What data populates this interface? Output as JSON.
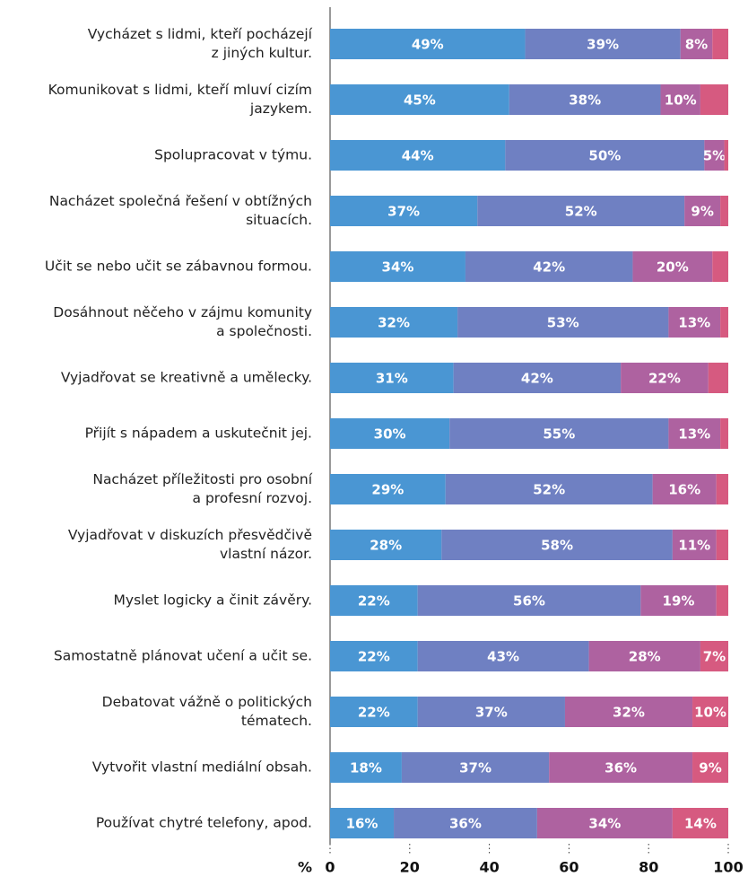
{
  "chart_data": {
    "type": "stacked-barh",
    "categories": [
      "Vycházet s lidmi, kteří pocházejí\nz jiných kultur.",
      "Komunikovat s lidmi, kteří mluví cizím\njazykem.",
      "Spolupracovat v týmu.",
      "Nacházet společná řešení v obtížných\nsituacích.",
      "Učit se nebo učit se zábavnou formou.",
      "Dosáhnout něčeho v zájmu komunity\na společnosti.",
      "Vyjadřovat se kreativně a umělecky.",
      "Přijít s nápadem a uskutečnit jej.",
      "Nacházet příležitosti pro osobní\na profesní rozvoj.",
      "Vyjadřovat v diskuzích přesvědčivě\nvlastní názor.",
      "Myslet logicky a činit závěry.",
      "Samostatně plánovat učení a učit se.",
      "Debatovat vážně o politických\ntématech.",
      "Vytvořit vlastní mediální obsah.",
      "Používat chytré telefony, apod."
    ],
    "series": [
      {
        "color": "#4a96d3",
        "values": [
          49,
          45,
          44,
          37,
          34,
          32,
          31,
          30,
          29,
          28,
          22,
          22,
          22,
          18,
          16
        ],
        "value_labels": [
          "49%",
          "45%",
          "44%",
          "37%",
          "34%",
          "32%",
          "31%",
          "30%",
          "29%",
          "28%",
          "22%",
          "22%",
          "22%",
          "18%",
          "16%"
        ]
      },
      {
        "color": "#6f80c2",
        "values": [
          39,
          38,
          50,
          52,
          42,
          53,
          42,
          55,
          52,
          58,
          56,
          43,
          37,
          37,
          36
        ],
        "value_labels": [
          "39%",
          "38%",
          "50%",
          "52%",
          "42%",
          "53%",
          "42%",
          "55%",
          "52%",
          "58%",
          "56%",
          "43%",
          "37%",
          "37%",
          "36%"
        ]
      },
      {
        "color": "#ae62a0",
        "values": [
          8,
          10,
          5,
          9,
          20,
          13,
          22,
          13,
          16,
          11,
          19,
          28,
          32,
          36,
          34
        ],
        "value_labels": [
          "8%",
          "10%",
          "5%",
          "9%",
          "20%",
          "13%",
          "22%",
          "13%",
          "16%",
          "11%",
          "19%",
          "28%",
          "32%",
          "36%",
          "34%"
        ]
      },
      {
        "color": "#d65a80",
        "values": [
          4,
          7,
          1,
          2,
          4,
          2,
          5,
          2,
          3,
          3,
          3,
          7,
          10,
          9,
          14
        ],
        "value_labels": [
          null,
          null,
          null,
          null,
          null,
          null,
          null,
          null,
          null,
          null,
          null,
          "7%",
          "10%",
          "9%",
          "14%"
        ]
      }
    ],
    "xlabel": "%",
    "xlim": [
      0,
      100
    ],
    "xticks": [
      0,
      20,
      40,
      60,
      80,
      100
    ]
  }
}
